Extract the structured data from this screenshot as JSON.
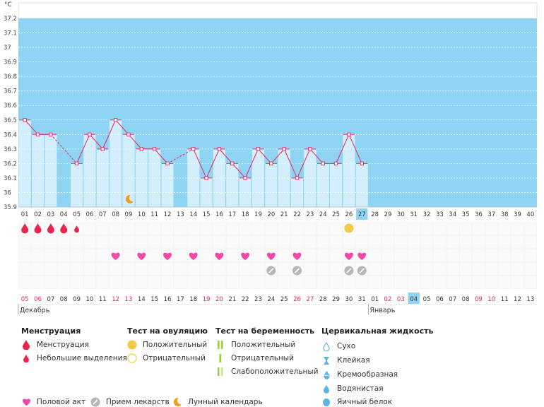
{
  "unit_label": "°C",
  "chart_data": {
    "type": "line",
    "ylim": [
      35.9,
      37.2
    ],
    "y_ticks": [
      "37.2",
      "37.1",
      "37",
      "36.9",
      "36.8",
      "36.7",
      "36.6",
      "36.5",
      "36.4",
      "36.3",
      "36.2",
      "36.1",
      "36",
      "35.9"
    ],
    "cycle_days": [
      "01",
      "02",
      "03",
      "04",
      "05",
      "06",
      "07",
      "08",
      "09",
      "10",
      "11",
      "12",
      "13",
      "14",
      "15",
      "16",
      "17",
      "18",
      "19",
      "20",
      "21",
      "22",
      "23",
      "24",
      "25",
      "26",
      "27",
      "28",
      "29",
      "30",
      "31",
      "32",
      "33",
      "34",
      "35",
      "36",
      "37",
      "38",
      "39",
      "40"
    ],
    "current_day_index": 26,
    "temperatures": [
      36.5,
      36.4,
      36.4,
      null,
      36.2,
      36.4,
      36.3,
      36.5,
      36.4,
      36.3,
      36.3,
      36.2,
      null,
      36.3,
      36.1,
      36.3,
      36.2,
      36.1,
      36.3,
      36.2,
      36.3,
      36.1,
      36.3,
      36.2,
      36.2,
      36.4,
      36.2
    ],
    "dates": [
      {
        "d": "05",
        "red": true
      },
      {
        "d": "06",
        "red": true
      },
      {
        "d": "07",
        "red": false
      },
      {
        "d": "08",
        "red": false
      },
      {
        "d": "09",
        "red": false
      },
      {
        "d": "10",
        "red": false
      },
      {
        "d": "11",
        "red": false
      },
      {
        "d": "12",
        "red": true
      },
      {
        "d": "13",
        "red": true
      },
      {
        "d": "14",
        "red": false
      },
      {
        "d": "15",
        "red": false
      },
      {
        "d": "16",
        "red": false
      },
      {
        "d": "17",
        "red": false
      },
      {
        "d": "18",
        "red": false
      },
      {
        "d": "19",
        "red": true
      },
      {
        "d": "20",
        "red": true
      },
      {
        "d": "21",
        "red": false
      },
      {
        "d": "22",
        "red": false
      },
      {
        "d": "23",
        "red": false
      },
      {
        "d": "24",
        "red": false
      },
      {
        "d": "25",
        "red": false
      },
      {
        "d": "26",
        "red": true
      },
      {
        "d": "27",
        "red": true
      },
      {
        "d": "28",
        "red": false
      },
      {
        "d": "29",
        "red": false
      },
      {
        "d": "30",
        "red": false
      },
      {
        "d": "31",
        "red": false
      },
      {
        "d": "01",
        "red": false
      },
      {
        "d": "02",
        "red": true
      },
      {
        "d": "03",
        "red": true
      },
      {
        "d": "04",
        "red": false
      },
      {
        "d": "05",
        "red": false
      },
      {
        "d": "06",
        "red": false
      },
      {
        "d": "07",
        "red": false
      },
      {
        "d": "08",
        "red": false
      },
      {
        "d": "09",
        "red": true
      },
      {
        "d": "10",
        "red": true
      },
      {
        "d": "11",
        "red": false
      },
      {
        "d": "12",
        "red": false
      },
      {
        "d": "13",
        "red": false
      }
    ],
    "month_labels": [
      {
        "label": "Декабрь",
        "day_index": 0
      },
      {
        "label": "Январь",
        "day_index": 27
      }
    ],
    "moon_day_index": 8,
    "markers": {
      "menstruation_heavy": [
        0,
        1,
        2,
        3
      ],
      "menstruation_light": [
        4
      ],
      "ovulation_positive": [
        25
      ],
      "intercourse": [
        7,
        9,
        11,
        13,
        15,
        17,
        19,
        21,
        25,
        26
      ],
      "medication": [
        19,
        21,
        25,
        26
      ]
    }
  },
  "legend": {
    "menstruation": {
      "title": "Менструация",
      "items": [
        "Менструация",
        "Небольшие выделения"
      ]
    },
    "ovulation": {
      "title": "Тест на овуляцию",
      "items": [
        "Положительный",
        "Отрицательный"
      ]
    },
    "pregnancy": {
      "title": "Тест на беременность",
      "items": [
        "Положительный",
        "Отрицательный",
        "Слабоположительный"
      ]
    },
    "cervical": {
      "title": "Цервикальная жидкость",
      "items": [
        "Сухо",
        "Клейкая",
        "Кремообразная",
        "Водянистая",
        "Яичный белок"
      ]
    },
    "bottom": {
      "intercourse": "Половой акт",
      "medication": "Прием лекарств",
      "lunar": "Лунный календарь"
    }
  },
  "colors": {
    "fill": "#8fd5f3",
    "bar": "#d3effb",
    "line": "#e6326a",
    "moon": "#f29a1c",
    "ovulation": "#f7c948",
    "pregnancy_pos": "#9acd32",
    "pregnancy_neg": "#9acd32",
    "pregnancy_weak": "#c8e59a",
    "current_day": "#8fd5f3",
    "med": "#b7b7b7"
  }
}
